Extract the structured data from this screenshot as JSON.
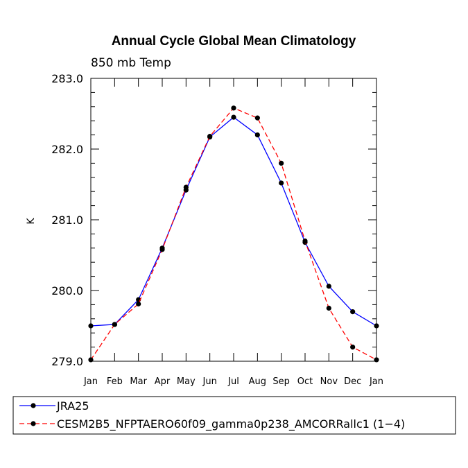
{
  "chart_data": {
    "type": "line",
    "title": "Annual Cycle Global Mean Climatology",
    "subtitle": "850 mb Temp",
    "xlabel": "",
    "ylabel": "K",
    "categories": [
      "Jan",
      "Feb",
      "Mar",
      "Apr",
      "May",
      "Jun",
      "Jul",
      "Aug",
      "Sep",
      "Oct",
      "Nov",
      "Dec",
      "Jan"
    ],
    "ylim": [
      279.0,
      283.0
    ],
    "yticks": [
      "279.0",
      "280.0",
      "281.0",
      "282.0",
      "283.0"
    ],
    "series": [
      {
        "name": "JRA25",
        "color": "#0000ff",
        "dash": "solid",
        "values": [
          279.5,
          279.52,
          279.87,
          280.6,
          281.42,
          282.17,
          282.45,
          282.2,
          281.52,
          280.68,
          280.06,
          279.7,
          279.5
        ]
      },
      {
        "name": "CESM2B5_NFPTAERO60f09_gamma0p238_AMCORRallc1 (1−4)",
        "color": "#ff0000",
        "dash": "dashed",
        "values": [
          279.02,
          279.52,
          279.81,
          280.58,
          281.46,
          282.18,
          282.58,
          282.44,
          281.8,
          280.7,
          279.75,
          279.2,
          279.02
        ]
      }
    ],
    "legend_position": "bottom"
  }
}
